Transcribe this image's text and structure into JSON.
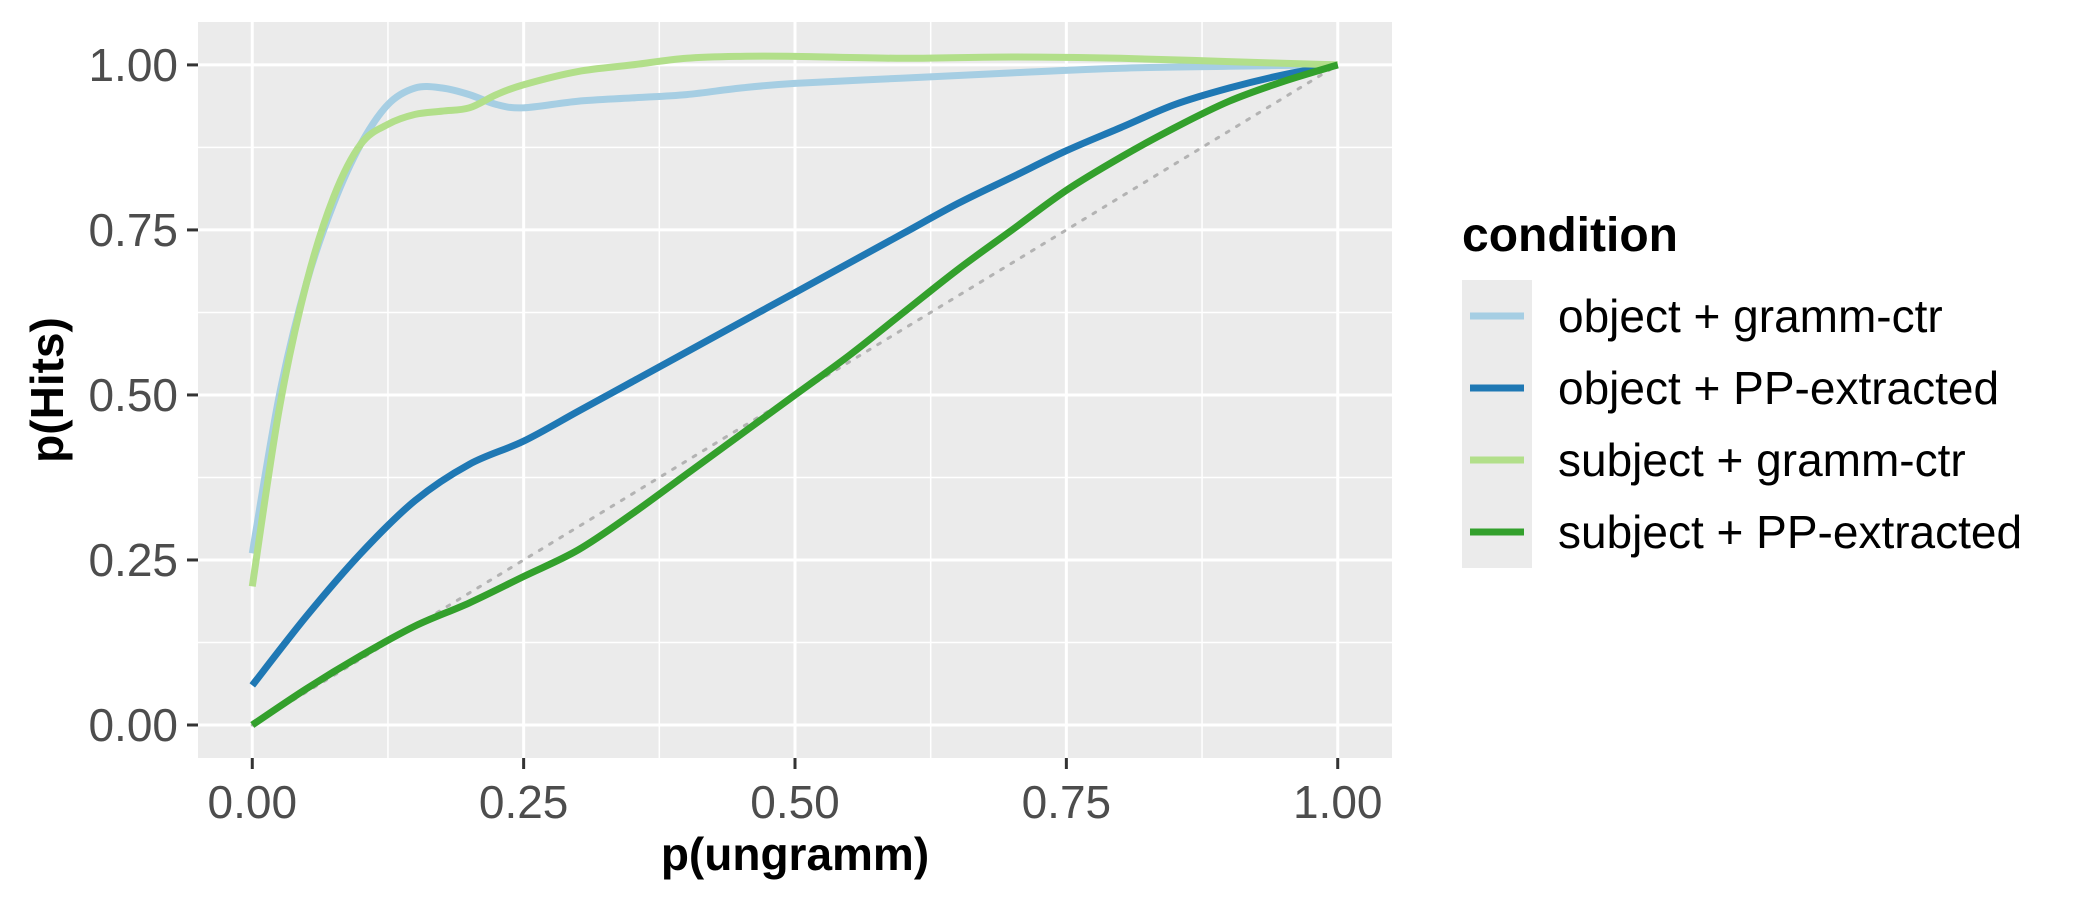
{
  "chart_data": {
    "type": "line",
    "title": "",
    "xlabel": "p(ungramm)",
    "ylabel": "p(Hits)",
    "xlim": [
      -0.1,
      2.1
    ],
    "ylim": [
      -0.05,
      1.065
    ],
    "x_ticks": [
      "0.00",
      "0.25",
      "0.50",
      "0.75",
      "1.00"
    ],
    "x_tick_values": [
      0.0,
      0.5,
      1.0,
      1.5,
      2.0
    ],
    "y_ticks": [
      "0.00",
      "0.25",
      "0.50",
      "0.75",
      "1.00"
    ],
    "y_tick_values": [
      0.0,
      0.25,
      0.5,
      0.75,
      1.0
    ],
    "grid": true,
    "legend": {
      "title": "condition",
      "position": "right"
    },
    "reference_line": {
      "style": "dotted",
      "color": "#b3b3b3",
      "points": [
        [
          0,
          0
        ],
        [
          2,
          1
        ]
      ]
    },
    "series": [
      {
        "name": "object + gramm-ctr",
        "color": "#a6cee3",
        "points": [
          [
            0.0,
            0.26
          ],
          [
            0.05,
            0.5
          ],
          [
            0.1,
            0.67
          ],
          [
            0.15,
            0.79
          ],
          [
            0.2,
            0.88
          ],
          [
            0.25,
            0.94
          ],
          [
            0.3,
            0.965
          ],
          [
            0.35,
            0.965
          ],
          [
            0.4,
            0.955
          ],
          [
            0.45,
            0.94
          ],
          [
            0.5,
            0.935
          ],
          [
            0.6,
            0.945
          ],
          [
            0.7,
            0.95
          ],
          [
            0.8,
            0.955
          ],
          [
            0.9,
            0.965
          ],
          [
            1.0,
            0.972
          ],
          [
            1.2,
            0.98
          ],
          [
            1.4,
            0.988
          ],
          [
            1.6,
            0.995
          ],
          [
            1.8,
            0.998
          ],
          [
            2.0,
            1.0
          ]
        ]
      },
      {
        "name": "object + PP-extracted",
        "color": "#1f78b4",
        "points": [
          [
            0.0,
            0.06
          ],
          [
            0.1,
            0.165
          ],
          [
            0.2,
            0.26
          ],
          [
            0.3,
            0.34
          ],
          [
            0.4,
            0.395
          ],
          [
            0.5,
            0.43
          ],
          [
            0.6,
            0.475
          ],
          [
            0.7,
            0.52
          ],
          [
            0.8,
            0.565
          ],
          [
            0.9,
            0.61
          ],
          [
            1.0,
            0.655
          ],
          [
            1.1,
            0.7
          ],
          [
            1.2,
            0.745
          ],
          [
            1.3,
            0.79
          ],
          [
            1.4,
            0.83
          ],
          [
            1.5,
            0.87
          ],
          [
            1.6,
            0.905
          ],
          [
            1.7,
            0.94
          ],
          [
            1.8,
            0.965
          ],
          [
            1.9,
            0.985
          ],
          [
            2.0,
            1.0
          ]
        ]
      },
      {
        "name": "subject + gramm-ctr",
        "color": "#b2df8a",
        "points": [
          [
            0.0,
            0.21
          ],
          [
            0.05,
            0.48
          ],
          [
            0.1,
            0.67
          ],
          [
            0.15,
            0.8
          ],
          [
            0.2,
            0.88
          ],
          [
            0.25,
            0.91
          ],
          [
            0.3,
            0.925
          ],
          [
            0.35,
            0.93
          ],
          [
            0.4,
            0.935
          ],
          [
            0.45,
            0.955
          ],
          [
            0.5,
            0.97
          ],
          [
            0.6,
            0.99
          ],
          [
            0.7,
            1.0
          ],
          [
            0.8,
            1.01
          ],
          [
            0.9,
            1.013
          ],
          [
            1.0,
            1.013
          ],
          [
            1.2,
            1.01
          ],
          [
            1.4,
            1.012
          ],
          [
            1.6,
            1.01
          ],
          [
            1.8,
            1.005
          ],
          [
            2.0,
            1.0
          ]
        ]
      },
      {
        "name": "subject + PP-extracted",
        "color": "#33a02c",
        "points": [
          [
            0.0,
            0.0
          ],
          [
            0.1,
            0.055
          ],
          [
            0.2,
            0.105
          ],
          [
            0.3,
            0.15
          ],
          [
            0.4,
            0.185
          ],
          [
            0.5,
            0.225
          ],
          [
            0.6,
            0.265
          ],
          [
            0.7,
            0.32
          ],
          [
            0.8,
            0.38
          ],
          [
            0.9,
            0.44
          ],
          [
            1.0,
            0.5
          ],
          [
            1.1,
            0.56
          ],
          [
            1.2,
            0.625
          ],
          [
            1.3,
            0.69
          ],
          [
            1.4,
            0.75
          ],
          [
            1.5,
            0.81
          ],
          [
            1.6,
            0.86
          ],
          [
            1.7,
            0.905
          ],
          [
            1.8,
            0.945
          ],
          [
            1.9,
            0.975
          ],
          [
            2.0,
            1.0
          ]
        ]
      }
    ]
  }
}
